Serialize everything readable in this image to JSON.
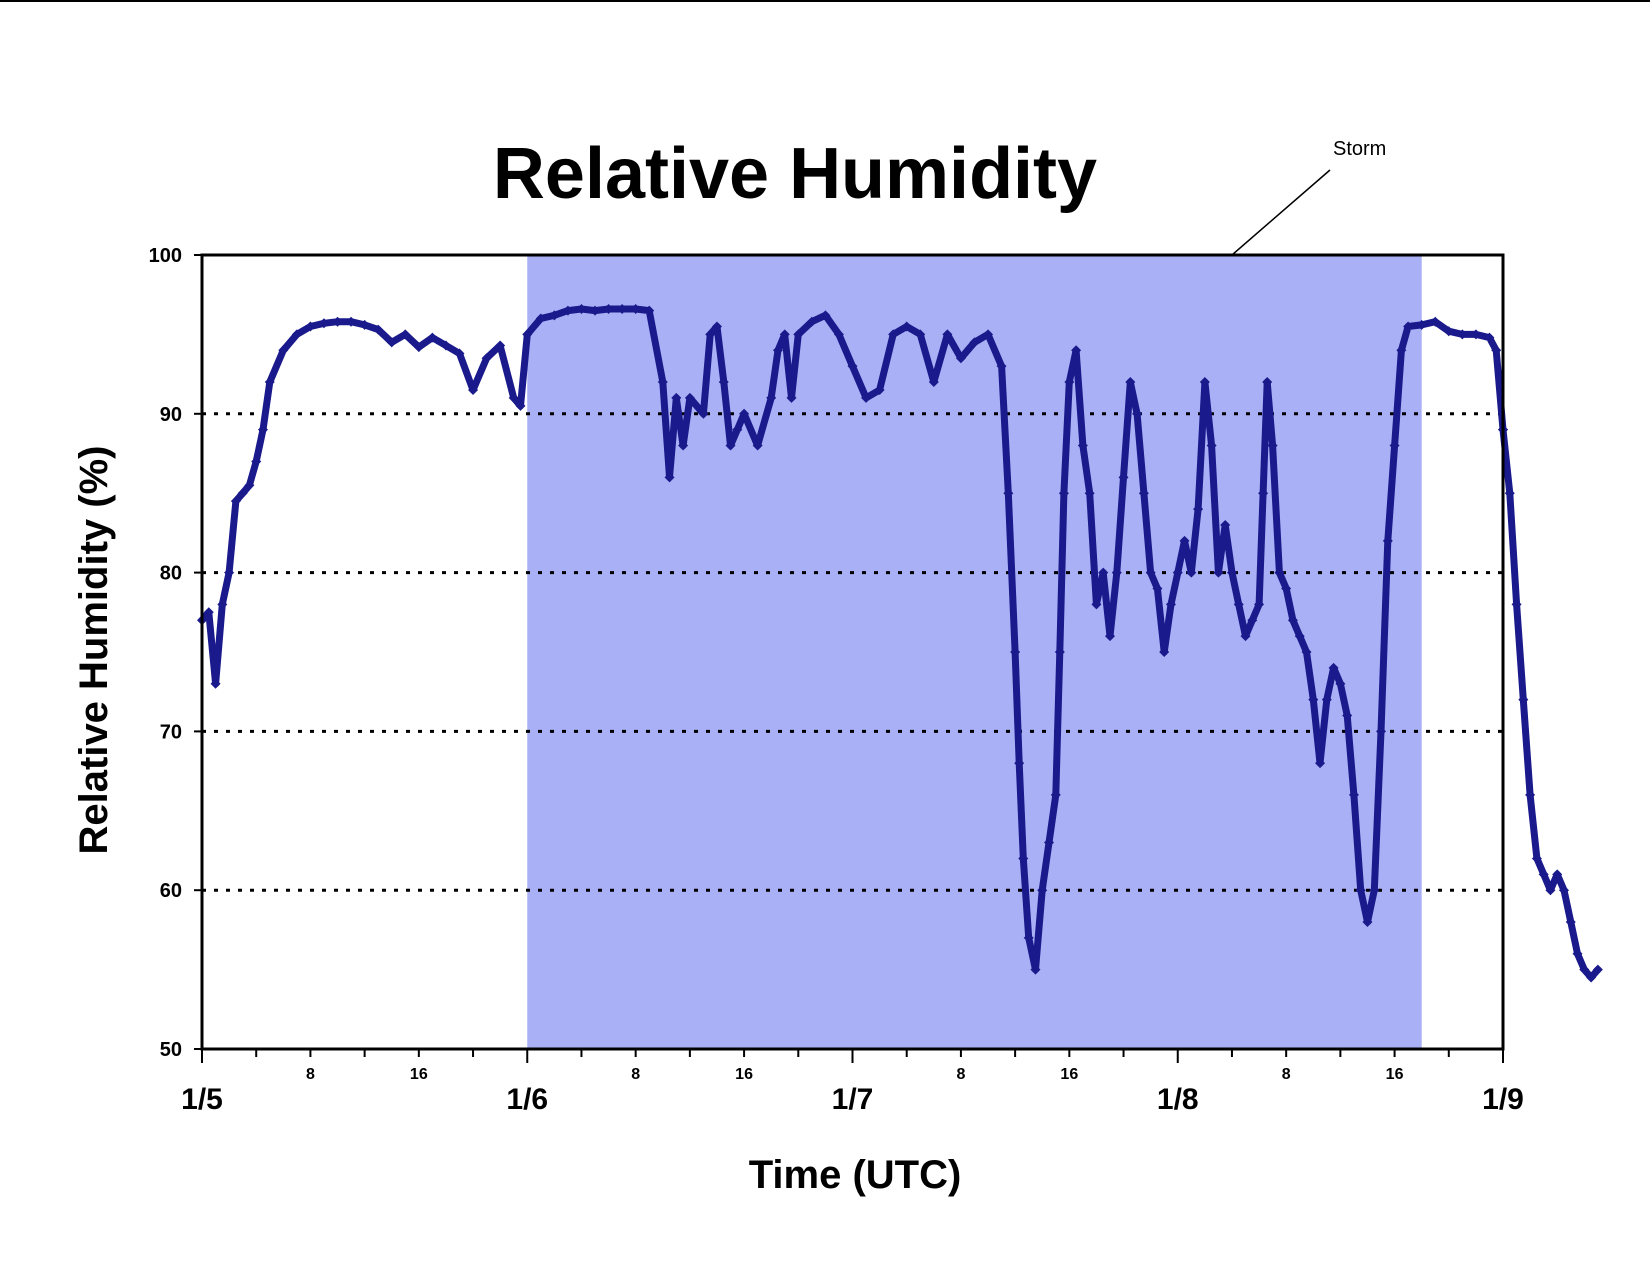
{
  "chart_data": {
    "type": "scatter",
    "title": "Relative Humidity",
    "xlabel": "Time (UTC)",
    "ylabel": "Relative Humidity (%)",
    "ylim": [
      50,
      100
    ],
    "yticks": [
      50,
      60,
      70,
      80,
      90,
      100
    ],
    "y_gridlines": [
      60,
      70,
      80,
      90
    ],
    "grid": "horizontal dotted",
    "xlim_hours": [
      0,
      96
    ],
    "day_labels": [
      "1/5",
      "1/6",
      "1/7",
      "1/8",
      "1/9"
    ],
    "hour_labels": [
      "8",
      "16"
    ],
    "marker_color": "#1a1a8c",
    "shaded_region": {
      "label": "Storm",
      "start": "1/6 00 UTC",
      "end": "1/8 18 UTC",
      "start_hour": 24,
      "end_hour": 90,
      "color": "#aab0f5"
    },
    "annotations": [
      {
        "text": "Storm"
      }
    ],
    "series": [
      {
        "points": [
          [
            0,
            77
          ],
          [
            0.5,
            77.5
          ],
          [
            1,
            73
          ],
          [
            1.5,
            78
          ],
          [
            2,
            80
          ],
          [
            2.5,
            84.5
          ],
          [
            3,
            85
          ],
          [
            3.5,
            85.5
          ],
          [
            4,
            87
          ],
          [
            4.5,
            89
          ],
          [
            5,
            92
          ],
          [
            6,
            94
          ],
          [
            7,
            95
          ],
          [
            8,
            95.5
          ],
          [
            9,
            95.7
          ],
          [
            10,
            95.8
          ],
          [
            11,
            95.8
          ],
          [
            12,
            95.6
          ],
          [
            13,
            95.3
          ],
          [
            14,
            94.5
          ],
          [
            15,
            95
          ],
          [
            16,
            94.2
          ],
          [
            17,
            94.8
          ],
          [
            18,
            94.3
          ],
          [
            19,
            93.8
          ],
          [
            20,
            91.5
          ],
          [
            21,
            93.5
          ],
          [
            22,
            94.3
          ],
          [
            23,
            91
          ],
          [
            23.5,
            90.5
          ],
          [
            24,
            95
          ],
          [
            25,
            96
          ],
          [
            26,
            96.2
          ],
          [
            27,
            96.5
          ],
          [
            28,
            96.6
          ],
          [
            29,
            96.5
          ],
          [
            30,
            96.6
          ],
          [
            31,
            96.6
          ],
          [
            32,
            96.6
          ],
          [
            33,
            96.5
          ],
          [
            34,
            92
          ],
          [
            34.5,
            86
          ],
          [
            35,
            91
          ],
          [
            35.5,
            88
          ],
          [
            36,
            91
          ],
          [
            37,
            90
          ],
          [
            37.5,
            95
          ],
          [
            38,
            95.5
          ],
          [
            38.5,
            92
          ],
          [
            39,
            88
          ],
          [
            39.5,
            89
          ],
          [
            40,
            90
          ],
          [
            41,
            88
          ],
          [
            42,
            91
          ],
          [
            42.5,
            94
          ],
          [
            43,
            95
          ],
          [
            43.5,
            91
          ],
          [
            44,
            95
          ],
          [
            45,
            95.8
          ],
          [
            46,
            96.2
          ],
          [
            47,
            95
          ],
          [
            48,
            93
          ],
          [
            49,
            91
          ],
          [
            50,
            91.5
          ],
          [
            51,
            95
          ],
          [
            52,
            95.5
          ],
          [
            53,
            95
          ],
          [
            54,
            92
          ],
          [
            55,
            95
          ],
          [
            56,
            93.5
          ],
          [
            57,
            94.5
          ],
          [
            58,
            95
          ],
          [
            59,
            93
          ],
          [
            59.5,
            85
          ],
          [
            60,
            75
          ],
          [
            60.3,
            68
          ],
          [
            60.6,
            62
          ],
          [
            61,
            57
          ],
          [
            61.5,
            55
          ],
          [
            62,
            60
          ],
          [
            62.5,
            63
          ],
          [
            63,
            66
          ],
          [
            63.3,
            75
          ],
          [
            63.6,
            85
          ],
          [
            64,
            92
          ],
          [
            64.5,
            94
          ],
          [
            65,
            88
          ],
          [
            65.5,
            85
          ],
          [
            66,
            78
          ],
          [
            66.5,
            80
          ],
          [
            67,
            76
          ],
          [
            67.5,
            80
          ],
          [
            68,
            86
          ],
          [
            68.5,
            92
          ],
          [
            69,
            90
          ],
          [
            69.5,
            85
          ],
          [
            70,
            80
          ],
          [
            70.5,
            79
          ],
          [
            71,
            75
          ],
          [
            71.5,
            78
          ],
          [
            72,
            80
          ],
          [
            72.5,
            82
          ],
          [
            73,
            80
          ],
          [
            73.5,
            84
          ],
          [
            74,
            92
          ],
          [
            74.5,
            88
          ],
          [
            75,
            80
          ],
          [
            75.5,
            83
          ],
          [
            76,
            80
          ],
          [
            76.5,
            78
          ],
          [
            77,
            76
          ],
          [
            77.5,
            77
          ],
          [
            78,
            78
          ],
          [
            78.3,
            85
          ],
          [
            78.6,
            92
          ],
          [
            79,
            88
          ],
          [
            79.5,
            80
          ],
          [
            80,
            79
          ],
          [
            80.5,
            77
          ],
          [
            81,
            76
          ],
          [
            81.5,
            75
          ],
          [
            82,
            72
          ],
          [
            82.5,
            68
          ],
          [
            83,
            72
          ],
          [
            83.5,
            74
          ],
          [
            84,
            73
          ],
          [
            84.5,
            71
          ],
          [
            85,
            66
          ],
          [
            85.5,
            60
          ],
          [
            86,
            58
          ],
          [
            86.5,
            60
          ],
          [
            87,
            70
          ],
          [
            87.5,
            82
          ],
          [
            88,
            88
          ],
          [
            88.5,
            94
          ],
          [
            89,
            95.5
          ],
          [
            90,
            95.6
          ],
          [
            91,
            95.8
          ],
          [
            92,
            95.2
          ],
          [
            93,
            95
          ],
          [
            94,
            95
          ],
          [
            95,
            94.8
          ],
          [
            95.5,
            94
          ],
          [
            96,
            89
          ]
        ]
      },
      {
        "x_day": 4,
        "points": [
          [
            0,
            89
          ],
          [
            0.5,
            85
          ],
          [
            1,
            78
          ],
          [
            1.5,
            72
          ],
          [
            2,
            66
          ],
          [
            2.5,
            62
          ],
          [
            3,
            61
          ],
          [
            3.5,
            60
          ],
          [
            4,
            61
          ],
          [
            4.5,
            60
          ],
          [
            5,
            58
          ],
          [
            5.5,
            56
          ],
          [
            6,
            55
          ],
          [
            6.5,
            54.5
          ],
          [
            7,
            55
          ]
        ]
      }
    ]
  }
}
